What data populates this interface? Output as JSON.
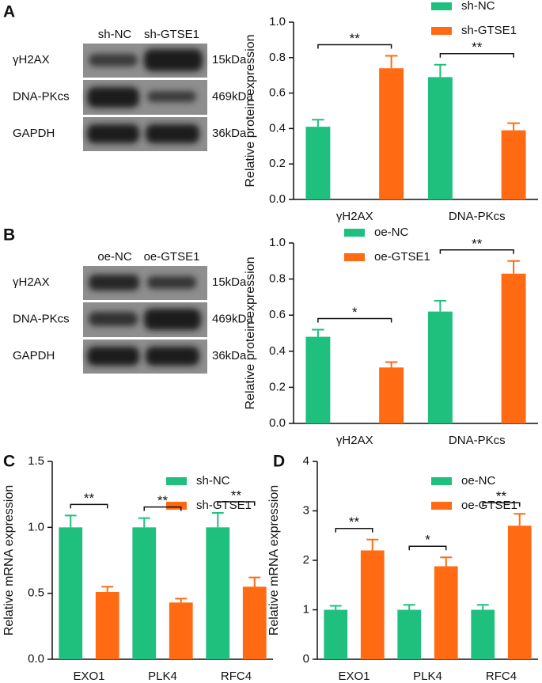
{
  "panel_labels": [
    "A",
    "B",
    "C",
    "D"
  ],
  "blots": [
    {
      "lanes": [
        "sh-NC",
        "sh-GTSE1"
      ],
      "rows": [
        {
          "label": "γH2AX",
          "size": "15kDa"
        },
        {
          "label": "DNA-PKcs",
          "size": "469kDa"
        },
        {
          "label": "GAPDH",
          "size": "36kDa"
        }
      ]
    },
    {
      "lanes": [
        "oe-NC",
        "oe-GTSE1"
      ],
      "rows": [
        {
          "label": "γH2AX",
          "size": "15kDa"
        },
        {
          "label": "DNA-PKcs",
          "size": "469kDa"
        },
        {
          "label": "GAPDH",
          "size": "36kDa"
        }
      ]
    }
  ],
  "chart_data": [
    {
      "type": "bar",
      "y_label": "Relative protein expression",
      "categories": [
        "γH2AX",
        "DNA-PKcs"
      ],
      "series": [
        {
          "name": "sh-NC",
          "color": "#1fbf7e",
          "values": [
            0.41,
            0.69
          ],
          "errors": [
            0.04,
            0.07
          ]
        },
        {
          "name": "sh-GTSE1",
          "color": "#ff6a13",
          "values": [
            0.74,
            0.39
          ],
          "errors": [
            0.07,
            0.04
          ]
        }
      ],
      "significance": [
        "**",
        "**"
      ],
      "ylim": [
        0,
        1
      ],
      "yticks": [
        {
          "value": 0,
          "label": "0.0"
        },
        0.2,
        0.4,
        0.6,
        0.8,
        {
          "value": 1,
          "label": "1.0"
        }
      ],
      "legend": "upper right"
    },
    {
      "type": "bar",
      "y_label": "Relative protein expression",
      "categories": [
        "γH2AX",
        "DNA-PKcs"
      ],
      "series": [
        {
          "name": "oe-NC",
          "color": "#1fbf7e",
          "values": [
            0.48,
            0.62
          ],
          "errors": [
            0.04,
            0.06
          ]
        },
        {
          "name": "oe-GTSE1",
          "color": "#ff6a13",
          "values": [
            0.31,
            0.83
          ],
          "errors": [
            0.03,
            0.07
          ]
        }
      ],
      "significance": [
        "*",
        "**"
      ],
      "ylim": [
        0,
        1
      ],
      "yticks": [
        {
          "value": 0,
          "label": "0.0"
        },
        0.2,
        0.4,
        0.6,
        0.8,
        {
          "value": 1,
          "label": "1.0"
        }
      ],
      "legend": "upper left"
    },
    {
      "type": "bar",
      "y_label": "Relative mRNA expression",
      "categories": [
        "EXO1",
        "PLK4",
        "RFC4"
      ],
      "series": [
        {
          "name": "sh-NC",
          "color": "#1fbf7e",
          "values": [
            1.0,
            1.0,
            1.0
          ],
          "errors": [
            0.09,
            0.07,
            0.11
          ]
        },
        {
          "name": "sh-GTSE1",
          "color": "#ff6a13",
          "values": [
            0.51,
            0.43,
            0.55
          ],
          "errors": [
            0.04,
            0.03,
            0.07
          ]
        }
      ],
      "significance": [
        "**",
        "**",
        "**"
      ],
      "ylim": [
        0,
        1.5
      ],
      "yticks": [
        {
          "value": 0,
          "label": "0.0"
        },
        0.5,
        {
          "value": 1,
          "label": "1.0"
        },
        1.5
      ],
      "legend": "upper right"
    },
    {
      "type": "bar",
      "y_label": "Relative mRNA expression",
      "categories": [
        "EXO1",
        "PLK4",
        "RFC4"
      ],
      "series": [
        {
          "name": "oe-NC",
          "color": "#1fbf7e",
          "values": [
            1.0,
            1.0,
            1.0
          ],
          "errors": [
            0.08,
            0.1,
            0.1
          ]
        },
        {
          "name": "oe-GTSE1",
          "color": "#ff6a13",
          "values": [
            2.2,
            1.88,
            2.7
          ],
          "errors": [
            0.22,
            0.18,
            0.24
          ]
        }
      ],
      "significance": [
        "**",
        "*",
        "**"
      ],
      "ylim": [
        0,
        4
      ],
      "yticks": [
        0,
        1,
        2,
        3,
        4
      ],
      "legend": "upper right"
    }
  ]
}
